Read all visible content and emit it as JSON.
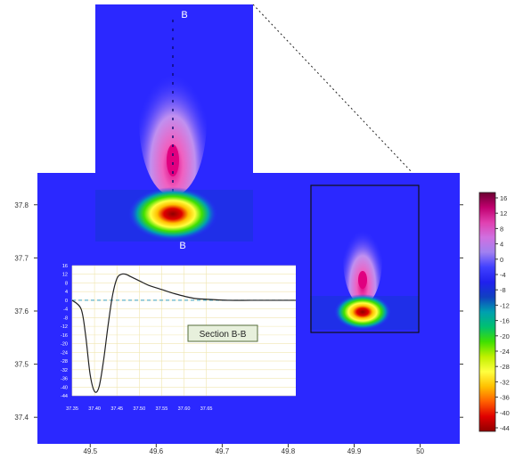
{
  "chart_data": [
    {
      "type": "heatmap",
      "title": "",
      "xlabel": "",
      "ylabel": "",
      "xlim": [
        49.42,
        50.06
      ],
      "ylim": [
        37.35,
        37.86
      ],
      "x_ticks": [
        "49.5",
        "49.6",
        "49.7",
        "49.8",
        "49.9",
        "50"
      ],
      "y_ticks": [
        "37.8",
        "37.7",
        "37.6",
        "37.5",
        "37.4"
      ],
      "features": [
        {
          "name": "main-plume",
          "x": 49.92,
          "y": 37.6
        },
        {
          "name": "zoom-plume",
          "x": 49.62,
          "y": 37.77
        }
      ],
      "section_markers": [
        "B",
        "B"
      ]
    },
    {
      "type": "line",
      "title": "Section B-B",
      "xlim": [
        37.35,
        37.85
      ],
      "ylim": [
        -44,
        16
      ],
      "x_ticks": [
        "37.35",
        "37.40",
        "37.45",
        "37.50",
        "37.55",
        "37.60",
        "37.65"
      ],
      "y_ticks": [
        "16",
        "12",
        "8",
        "4",
        "0",
        "-4",
        "-8",
        "-12",
        "-16",
        "-20",
        "-24",
        "-28",
        "-32",
        "-36",
        "-40",
        "-44"
      ],
      "series": [
        {
          "x": [
            37.35,
            37.37,
            37.38,
            37.39,
            37.4,
            37.41,
            37.42,
            37.43,
            37.44,
            37.45,
            37.46,
            37.47,
            37.48,
            37.5,
            37.52,
            37.55,
            37.58,
            37.62,
            37.65,
            37.7,
            37.75,
            37.8,
            37.85
          ],
          "values": [
            0,
            -4,
            -16,
            -34,
            -42,
            -40,
            -28,
            -12,
            2,
            10,
            12,
            12,
            11,
            9,
            7,
            5,
            3,
            1,
            0.5,
            0,
            0,
            0,
            0
          ]
        }
      ]
    },
    {
      "type": "colorbar",
      "ticks": [
        "16",
        "12",
        "8",
        "4",
        "0",
        "-4",
        "-8",
        "-12",
        "-16",
        "-20",
        "-24",
        "-28",
        "-32",
        "-36",
        "-40",
        "-44"
      ],
      "colors": [
        "#6b0030",
        "#c0006f",
        "#e040b0",
        "#d070e0",
        "#a080f0",
        "#4040ff",
        "#2020ee",
        "#1040c0",
        "#00a0b0",
        "#00c070",
        "#40e000",
        "#c0f000",
        "#ffff40",
        "#ffc000",
        "#ff6000",
        "#e00000",
        "#900000"
      ]
    }
  ]
}
